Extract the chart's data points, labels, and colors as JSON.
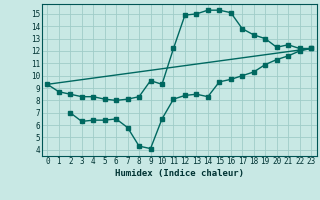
{
  "title": "",
  "xlabel": "Humidex (Indice chaleur)",
  "xlim": [
    -0.5,
    23.5
  ],
  "ylim": [
    3.5,
    15.8
  ],
  "xticks": [
    0,
    1,
    2,
    3,
    4,
    5,
    6,
    7,
    8,
    9,
    10,
    11,
    12,
    13,
    14,
    15,
    16,
    17,
    18,
    19,
    20,
    21,
    22,
    23
  ],
  "yticks": [
    4,
    5,
    6,
    7,
    8,
    9,
    10,
    11,
    12,
    13,
    14,
    15
  ],
  "bg_color": "#c8e8e4",
  "grid_color": "#a0ccc8",
  "line_color": "#006860",
  "line1_x": [
    0,
    1,
    2,
    3,
    4,
    5,
    6,
    7,
    8,
    9,
    10,
    11,
    12,
    13,
    14,
    15,
    16,
    17,
    18,
    19,
    20,
    21,
    22,
    23
  ],
  "line1_y": [
    9.3,
    8.7,
    8.5,
    8.3,
    8.3,
    8.1,
    8.0,
    8.1,
    8.3,
    9.6,
    9.3,
    12.2,
    14.9,
    15.0,
    15.3,
    15.3,
    15.1,
    13.8,
    13.3,
    13.0,
    12.3,
    12.5,
    12.2,
    12.2
  ],
  "line2_x": [
    2,
    3,
    4,
    5,
    6,
    7,
    8,
    9,
    10,
    11,
    12,
    13,
    14,
    15,
    16,
    17,
    18,
    19,
    20,
    21,
    22,
    23
  ],
  "line2_y": [
    7.0,
    6.3,
    6.4,
    6.4,
    6.5,
    5.8,
    4.3,
    4.1,
    6.5,
    8.1,
    8.4,
    8.5,
    8.3,
    9.5,
    9.7,
    10.0,
    10.3,
    10.9,
    11.3,
    11.6,
    12.0,
    12.2
  ],
  "line3_x": [
    0,
    23
  ],
  "line3_y": [
    9.3,
    12.2
  ]
}
